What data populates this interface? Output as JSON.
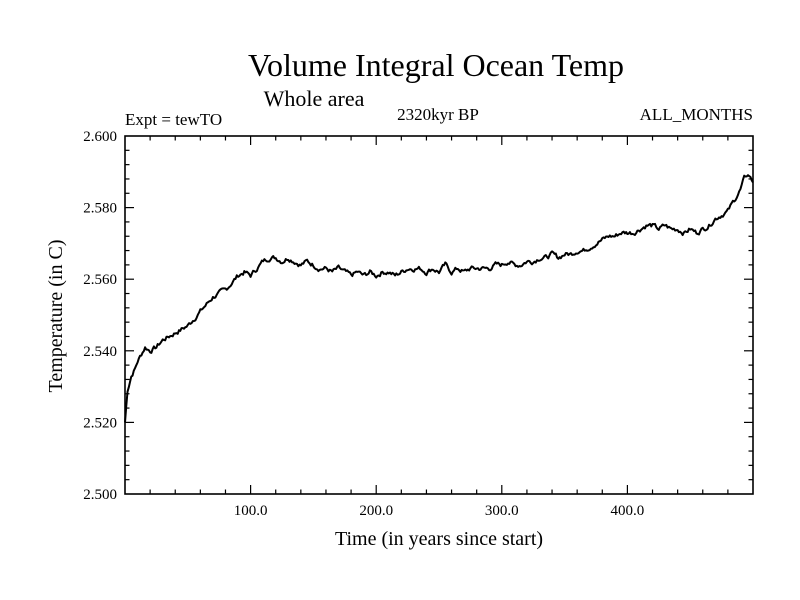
{
  "chart_data": {
    "type": "line",
    "title": "Volume Integral Ocean Temp",
    "subtitle": "Whole area",
    "experiment": "Expt = tewTO",
    "period": "2320kyr BP",
    "months": "ALL_MONTHS",
    "xlabel": "Time (in years since start)",
    "ylabel": "Temperature (in C)",
    "xlim": [
      0,
      500
    ],
    "ylim": [
      2.5,
      2.6
    ],
    "x_ticks": [
      {
        "value": 100,
        "label": "100.0"
      },
      {
        "value": 200,
        "label": "200.0"
      },
      {
        "value": 300,
        "label": "300.0"
      },
      {
        "value": 400,
        "label": "400.0"
      }
    ],
    "y_ticks": [
      {
        "value": 2.5,
        "label": "2.500"
      },
      {
        "value": 2.52,
        "label": "2.520"
      },
      {
        "value": 2.54,
        "label": "2.540"
      },
      {
        "value": 2.56,
        "label": "2.560"
      },
      {
        "value": 2.58,
        "label": "2.580"
      },
      {
        "value": 2.6,
        "label": "2.600"
      }
    ],
    "series": [
      {
        "name": "Volume integral temperature",
        "x": [
          0,
          2,
          5,
          8,
          10,
          13,
          16,
          20,
          25,
          30,
          35,
          40,
          45,
          50,
          55,
          60,
          65,
          70,
          75,
          80,
          85,
          90,
          95,
          100,
          105,
          110,
          115,
          120,
          125,
          130,
          135,
          140,
          145,
          150,
          155,
          160,
          165,
          170,
          175,
          180,
          185,
          190,
          195,
          200,
          205,
          210,
          215,
          220,
          225,
          230,
          235,
          240,
          245,
          250,
          255,
          260,
          265,
          270,
          275,
          280,
          285,
          290,
          295,
          300,
          305,
          310,
          315,
          320,
          325,
          330,
          335,
          340,
          345,
          350,
          355,
          360,
          365,
          370,
          375,
          380,
          385,
          390,
          395,
          400,
          405,
          410,
          415,
          420,
          425,
          430,
          435,
          440,
          445,
          450,
          455,
          460,
          465,
          470,
          475,
          480,
          485,
          490,
          493,
          495,
          497,
          500
        ],
        "y": [
          2.52,
          2.529,
          2.533,
          2.535,
          2.537,
          2.539,
          2.541,
          2.54,
          2.541,
          2.543,
          2.544,
          2.545,
          2.546,
          2.547,
          2.549,
          2.551,
          2.553,
          2.555,
          2.556,
          2.557,
          2.559,
          2.561,
          2.562,
          2.561,
          2.563,
          2.565,
          2.566,
          2.566,
          2.565,
          2.566,
          2.565,
          2.564,
          2.565,
          2.564,
          2.563,
          2.563,
          2.562,
          2.563,
          2.562,
          2.561,
          2.562,
          2.561,
          2.562,
          2.561,
          2.562,
          2.562,
          2.561,
          2.562,
          2.563,
          2.563,
          2.563,
          2.562,
          2.563,
          2.562,
          2.564,
          2.562,
          2.563,
          2.562,
          2.563,
          2.563,
          2.563,
          2.563,
          2.564,
          2.564,
          2.565,
          2.564,
          2.564,
          2.565,
          2.565,
          2.566,
          2.566,
          2.567,
          2.566,
          2.567,
          2.567,
          2.568,
          2.568,
          2.569,
          2.57,
          2.571,
          2.572,
          2.572,
          2.573,
          2.573,
          2.573,
          2.574,
          2.575,
          2.575,
          2.574,
          2.575,
          2.574,
          2.574,
          2.573,
          2.574,
          2.573,
          2.574,
          2.575,
          2.577,
          2.578,
          2.579,
          2.582,
          2.585,
          2.588,
          2.589,
          2.589,
          2.587
        ]
      }
    ]
  }
}
